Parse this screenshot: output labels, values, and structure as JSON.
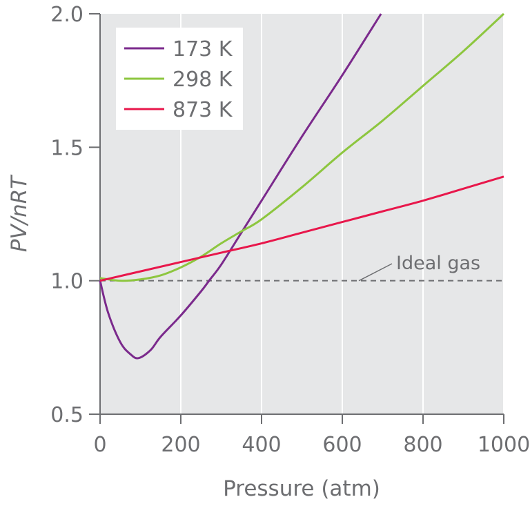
{
  "chart_data": {
    "type": "line",
    "xlabel": "Pressure (atm)",
    "ylabel": "PV/nRT",
    "xlim": [
      0,
      1000
    ],
    "ylim": [
      0.5,
      2.0
    ],
    "xticks": [
      "0",
      "200",
      "400",
      "600",
      "800",
      "1000"
    ],
    "yticks": [
      "0.5",
      "1.0",
      "1.5",
      "2.0"
    ],
    "grid": true,
    "legend_position": "top-left",
    "background_color": "#e6e7e8",
    "series": [
      {
        "name": "173 K",
        "color": "#7b2a8c",
        "x": [
          0,
          20,
          50,
          75,
          95,
          125,
          150,
          200,
          250,
          270,
          300,
          350,
          400,
          500,
          600,
          696
        ],
        "y": [
          1.0,
          0.88,
          0.77,
          0.725,
          0.71,
          0.74,
          0.79,
          0.87,
          0.96,
          1.0,
          1.06,
          1.18,
          1.3,
          1.54,
          1.77,
          2.0
        ]
      },
      {
        "name": "298 K",
        "color": "#8dc63f",
        "x": [
          0,
          50,
          100,
          150,
          200,
          250,
          300,
          350,
          400,
          500,
          600,
          700,
          800,
          900,
          1000
        ],
        "y": [
          1.01,
          1.0,
          1.005,
          1.02,
          1.05,
          1.09,
          1.14,
          1.185,
          1.23,
          1.35,
          1.48,
          1.6,
          1.73,
          1.86,
          2.0
        ]
      },
      {
        "name": "873 K",
        "color": "#e8174b",
        "x": [
          0,
          100,
          200,
          300,
          400,
          500,
          600,
          700,
          800,
          900,
          1000
        ],
        "y": [
          1.0,
          1.035,
          1.07,
          1.105,
          1.14,
          1.18,
          1.22,
          1.26,
          1.3,
          1.345,
          1.39
        ]
      }
    ],
    "reference_line": {
      "label": "Ideal gas",
      "y": 1.0,
      "color": "#6d6e71",
      "style": "dashed"
    }
  }
}
